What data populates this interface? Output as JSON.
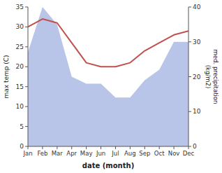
{
  "chart_data": {
    "type": "line",
    "xlabel": "date (month)",
    "ylabel": "max temp (C)",
    "y2label": "med. precipitation\n(kg/m2)",
    "categories": [
      "Jan",
      "Feb",
      "Mar",
      "Apr",
      "May",
      "Jun",
      "Jul",
      "Aug",
      "Sep",
      "Oct",
      "Nov",
      "Dec"
    ],
    "series": [
      {
        "type": "area",
        "axis": "y2",
        "color": "#b8c4e8",
        "values": [
          27,
          40,
          35,
          20,
          18,
          18,
          14,
          14,
          19,
          22,
          30,
          30
        ]
      },
      {
        "type": "line",
        "color": "#c0504d",
        "values": [
          30,
          32,
          31,
          26,
          21,
          20,
          20,
          21,
          24,
          26,
          28,
          29
        ]
      }
    ],
    "ylim": [
      0,
      35
    ],
    "yticks": [
      0,
      5,
      10,
      15,
      20,
      25,
      30,
      35
    ],
    "y2lim": [
      0,
      40
    ],
    "y2ticks": [
      0,
      10,
      20,
      30,
      40
    ]
  }
}
